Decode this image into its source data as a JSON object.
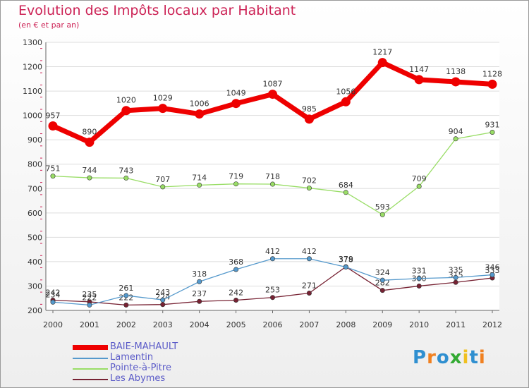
{
  "chart_data": {
    "type": "line",
    "title": "Evolution des Impôts locaux par Habitant",
    "subtitle": "(en € et par an)",
    "x": [
      "2000",
      "2001",
      "2002",
      "2003",
      "2004",
      "2005",
      "2006",
      "2007",
      "2008",
      "2009",
      "2010",
      "2011",
      "2012"
    ],
    "ylim": [
      200,
      1300
    ],
    "yticks": [
      "200",
      "300",
      "400",
      "500",
      "600",
      "700",
      "800",
      "900",
      "1000",
      "1100",
      "1200",
      "1300"
    ],
    "series": [
      {
        "name": "BAIE-MAHAULT",
        "color": "#ee0000",
        "values": [
          957,
          890,
          1020,
          1029,
          1006,
          1049,
          1087,
          985,
          1056,
          1217,
          1147,
          1138,
          1128
        ]
      },
      {
        "name": "Lamentin",
        "color": "#5599cc",
        "values": [
          234,
          222,
          261,
          243,
          318,
          368,
          412,
          412,
          378,
          324,
          331,
          335,
          346
        ]
      },
      {
        "name": "Pointe-à-Pitre",
        "color": "#99dd66",
        "values": [
          751,
          744,
          743,
          707,
          714,
          719,
          718,
          702,
          684,
          593,
          709,
          904,
          931
        ]
      },
      {
        "name": "Les Abymes",
        "color": "#772233",
        "values": [
          242,
          235,
          222,
          224,
          237,
          242,
          253,
          271,
          379,
          282,
          300,
          315,
          333
        ]
      }
    ]
  },
  "logo": {
    "letters": [
      "P",
      "r",
      "o",
      "x",
      "i",
      "t",
      "i"
    ],
    "colors": [
      "#2f8fd0",
      "#f08020",
      "#2f8fd0",
      "#33aa33",
      "#f0c020",
      "#2f8fd0",
      "#f08020"
    ]
  }
}
